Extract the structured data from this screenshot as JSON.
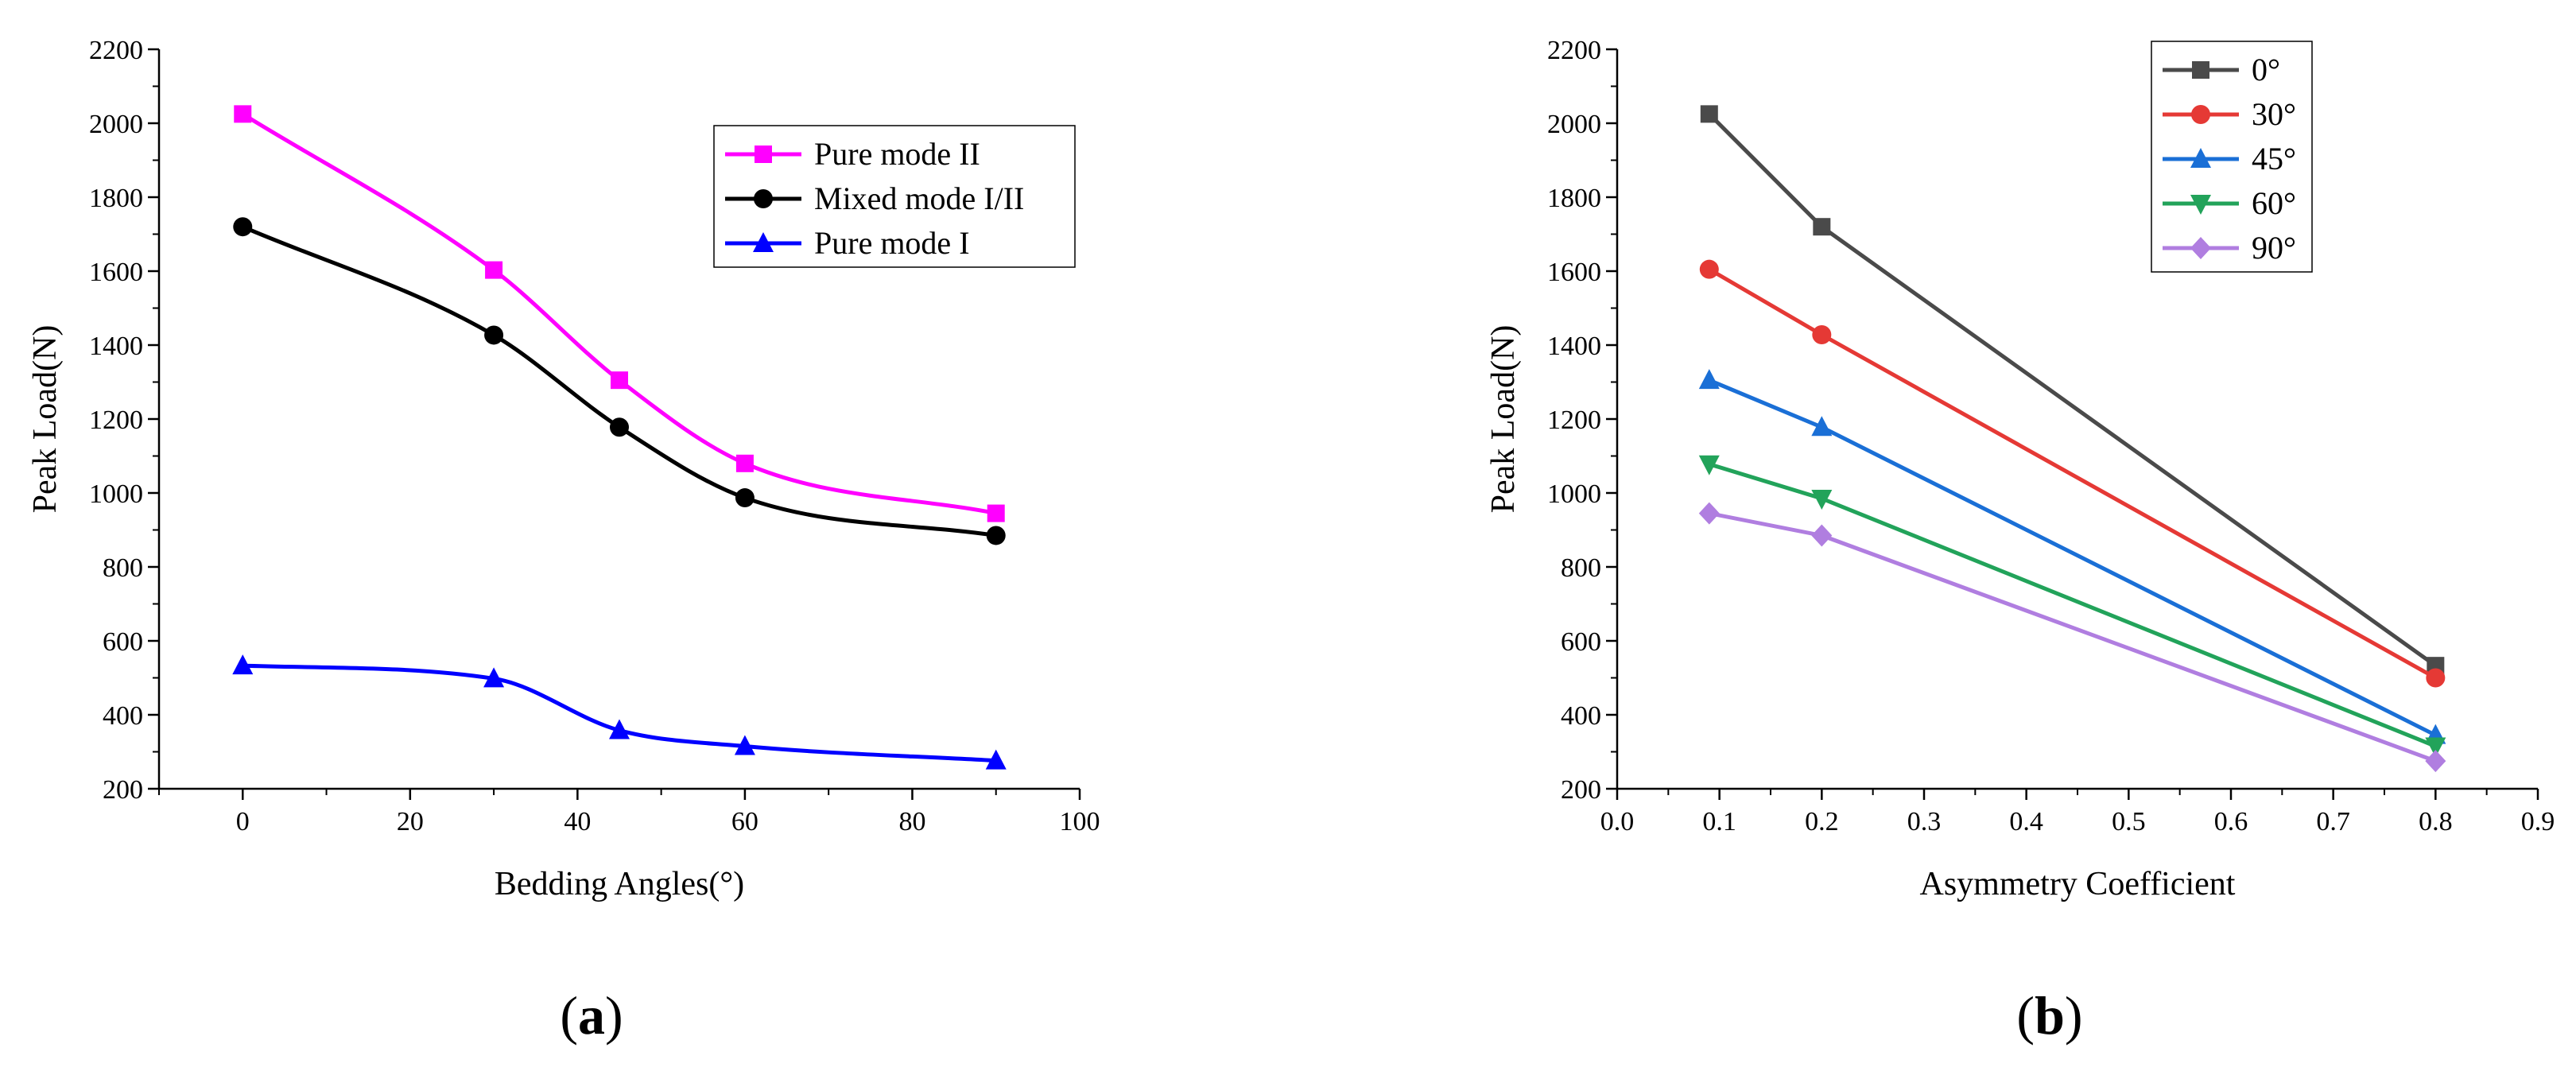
{
  "chart_data": [
    {
      "type": "line",
      "panel_label": "a",
      "title": "",
      "xlabel": "Bedding Angles(°)",
      "ylabel": "Peak Load(N)",
      "xlim": [
        -10,
        100
      ],
      "ylim": [
        200,
        2200
      ],
      "xticks": [
        0,
        20,
        40,
        60,
        80,
        100
      ],
      "yticks": [
        200,
        400,
        600,
        800,
        1000,
        1200,
        1400,
        1600,
        1800,
        2000,
        2200
      ],
      "grid": false,
      "legend": "top-right",
      "smooth": true,
      "x": [
        0,
        30,
        45,
        60,
        90
      ],
      "series": [
        {
          "name": "Pure mode II",
          "color": "#ff00ff",
          "marker": "square",
          "values": [
            2025,
            1603,
            1305,
            1080,
            945
          ]
        },
        {
          "name": "Mixed mode I/II",
          "color": "#000000",
          "marker": "circle",
          "values": [
            1720,
            1427,
            1178,
            987,
            885
          ]
        },
        {
          "name": "Pure mode I",
          "color": "#0000ff",
          "marker": "triangle-up",
          "values": [
            533,
            498,
            358,
            315,
            276
          ]
        }
      ]
    },
    {
      "type": "line",
      "panel_label": "b",
      "title": "",
      "xlabel": "Asymmetry Coefficient",
      "ylabel": "Peak Load(N)",
      "xlim": [
        0.0,
        0.9
      ],
      "ylim": [
        200,
        2200
      ],
      "xticks": [
        "0.0",
        "0.1",
        "0.2",
        "0.3",
        "0.4",
        "0.5",
        "0.6",
        "0.7",
        "0.8",
        "0.9"
      ],
      "yticks": [
        200,
        400,
        600,
        800,
        1000,
        1200,
        1400,
        1600,
        1800,
        2000,
        2200
      ],
      "grid": false,
      "legend": "top-right",
      "smooth": false,
      "x": [
        0.09,
        0.2,
        0.8
      ],
      "series": [
        {
          "name": "0°",
          "color": "#4a4a4a",
          "marker": "square",
          "values": [
            2025,
            1720,
            533
          ]
        },
        {
          "name": "30°",
          "color": "#e53935",
          "marker": "circle",
          "values": [
            1605,
            1428,
            500
          ]
        },
        {
          "name": "45°",
          "color": "#1a6fd6",
          "marker": "triangle-up",
          "values": [
            1305,
            1178,
            345
          ]
        },
        {
          "name": "60°",
          "color": "#22a35a",
          "marker": "triangle-down",
          "values": [
            1078,
            985,
            315
          ]
        },
        {
          "name": "90°",
          "color": "#b07ee0",
          "marker": "diamond",
          "values": [
            945,
            885,
            275
          ]
        }
      ]
    }
  ]
}
